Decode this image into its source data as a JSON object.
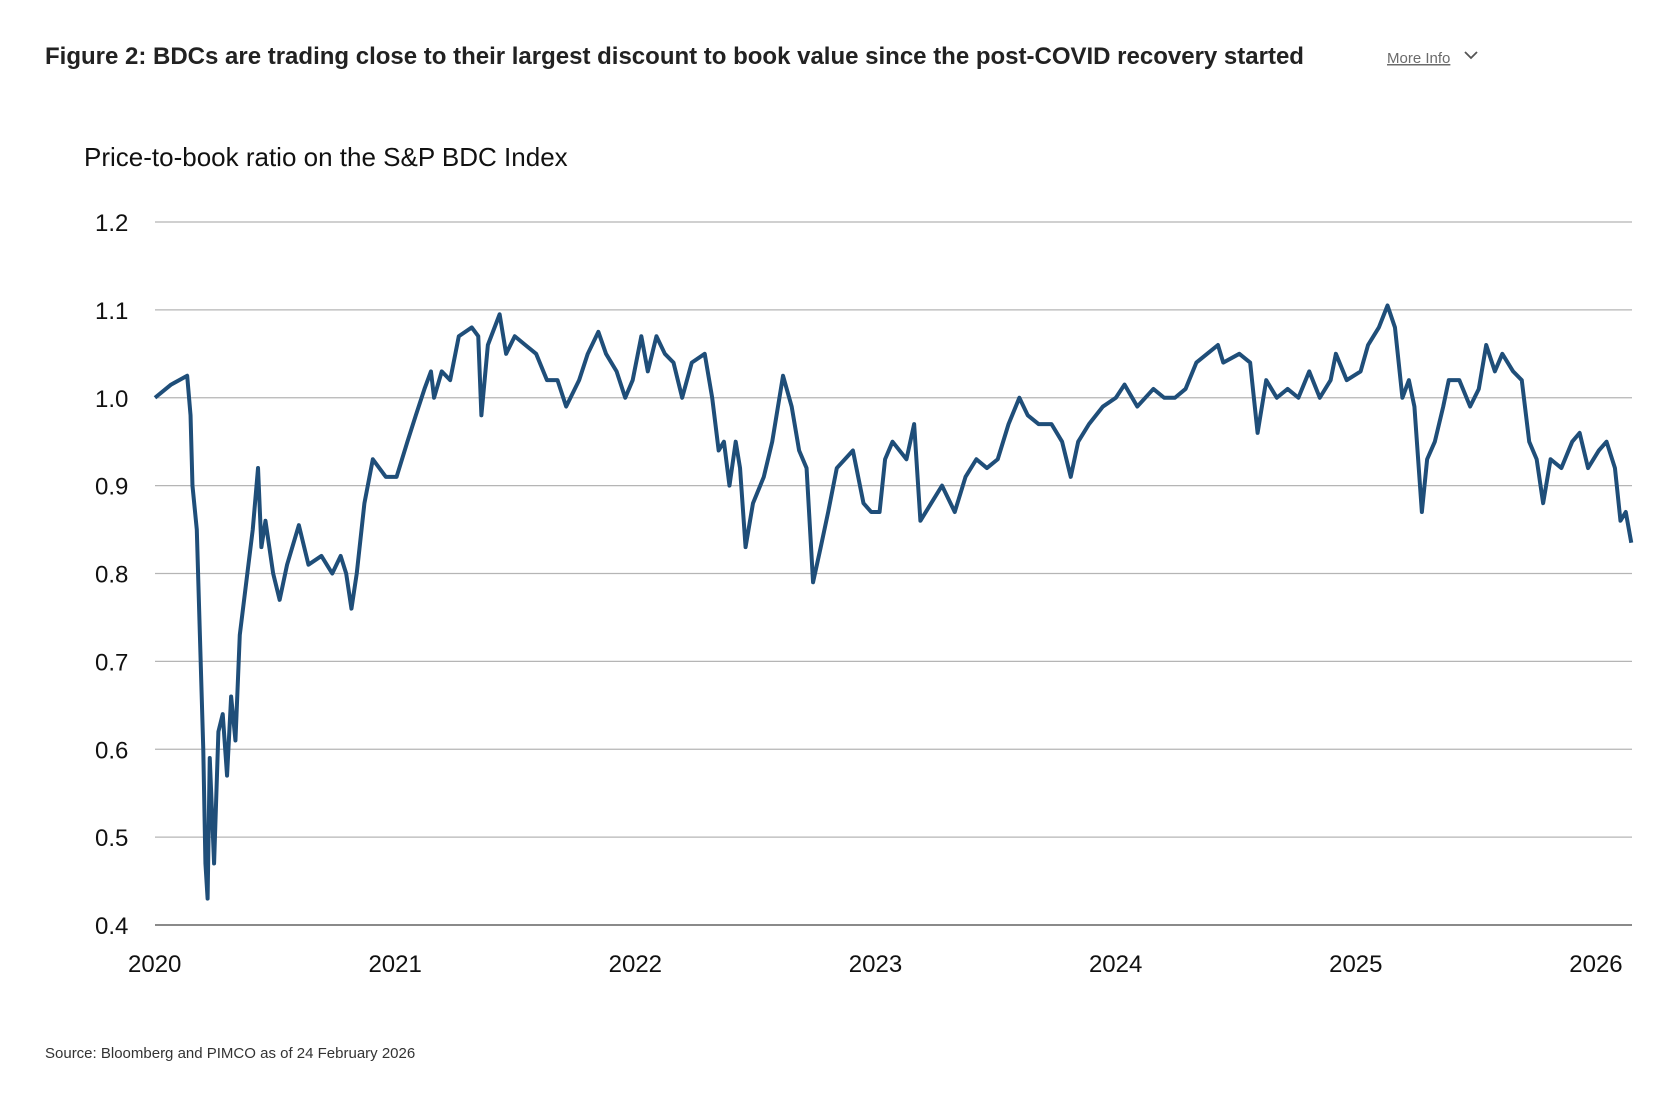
{
  "header": {
    "title": "Figure 2: BDCs are trading close to their largest discount to book value since the post-COVID recovery started",
    "more_info": "More Info"
  },
  "chart_data": {
    "type": "line",
    "title": "Price-to-book ratio on the S&P BDC Index",
    "xlim": [
      2020,
      2026.15
    ],
    "xticks": [
      2020,
      2021,
      2022,
      2023,
      2024,
      2025,
      2026
    ],
    "ylim": [
      0.4,
      1.2
    ],
    "yticks": [
      {
        "value": 0.4,
        "label": "0.4"
      },
      {
        "value": 0.5,
        "label": "0.5"
      },
      {
        "value": 0.6,
        "label": "0.6"
      },
      {
        "value": 0.7,
        "label": "0.7"
      },
      {
        "value": 0.8,
        "label": "0.8"
      },
      {
        "value": 0.9,
        "label": "0.9"
      },
      {
        "value": 1.0,
        "label": "1.0"
      },
      {
        "value": 1.1,
        "label": "1.1"
      },
      {
        "value": 1.2,
        "label": "1.2"
      }
    ],
    "grid": true,
    "series": [
      {
        "color": "#1f4e79",
        "x": [
          2020.0,
          2020.067,
          2020.134,
          2020.148,
          2020.156,
          2020.174,
          2020.188,
          2020.201,
          2020.21,
          2020.219,
          2020.228,
          2020.246,
          2020.264,
          2020.282,
          2020.3,
          2020.317,
          2020.335,
          2020.353,
          2020.38,
          2020.407,
          2020.429,
          2020.443,
          2020.46,
          2020.492,
          2020.519,
          2020.55,
          2020.599,
          2020.639,
          2020.693,
          2020.738,
          2020.773,
          2020.796,
          2020.818,
          2020.84,
          2020.872,
          2020.907,
          2020.961,
          2021.006,
          2021.051,
          2021.086,
          2021.122,
          2021.149,
          2021.162,
          2021.194,
          2021.229,
          2021.265,
          2021.319,
          2021.346,
          2021.359,
          2021.386,
          2021.435,
          2021.462,
          2021.498,
          2021.542,
          2021.587,
          2021.632,
          2021.676,
          2021.712,
          2021.766,
          2021.802,
          2021.846,
          2021.878,
          2021.922,
          2021.958,
          2021.989,
          2022.025,
          2022.052,
          2022.088,
          2022.123,
          2022.159,
          2022.195,
          2022.235,
          2022.289,
          2022.32,
          2022.347,
          2022.369,
          2022.392,
          2022.418,
          2022.436,
          2022.459,
          2022.49,
          2022.535,
          2022.57,
          2022.615,
          2022.651,
          2022.682,
          2022.713,
          2022.74,
          2022.772,
          2022.803,
          2022.839,
          2022.906,
          2022.95,
          2022.982,
          2023.017,
          2023.04,
          2023.071,
          2023.129,
          2023.161,
          2023.187,
          2023.232,
          2023.277,
          2023.33,
          2023.375,
          2023.42,
          2023.464,
          2023.509,
          2023.554,
          2023.599,
          2023.634,
          2023.679,
          2023.733,
          2023.777,
          2023.813,
          2023.844,
          2023.889,
          2023.947,
          2024.001,
          2024.037,
          2024.09,
          2024.157,
          2024.202,
          2024.247,
          2024.291,
          2024.336,
          2024.381,
          2024.426,
          2024.448,
          2024.515,
          2024.56,
          2024.591,
          2024.627,
          2024.671,
          2024.716,
          2024.761,
          2024.806,
          2024.85,
          2024.895,
          2024.917,
          2024.962,
          2025.02,
          2025.051,
          2025.096,
          2025.132,
          2025.163,
          2025.194,
          2025.221,
          2025.244,
          2025.275,
          2025.297,
          2025.329,
          2025.364,
          2025.387,
          2025.431,
          2025.476,
          2025.512,
          2025.543,
          2025.579,
          2025.61,
          2025.655,
          2025.691,
          2025.722,
          2025.753,
          2025.78,
          2025.811,
          2025.856,
          2025.901,
          2025.932,
          2025.967,
          2026.012,
          2026.044,
          2026.079,
          2026.102,
          2026.124,
          2026.147
        ],
        "values": [
          1.0,
          1.015,
          1.025,
          0.98,
          0.9,
          0.85,
          0.72,
          0.6,
          0.47,
          0.43,
          0.59,
          0.47,
          0.62,
          0.64,
          0.57,
          0.66,
          0.61,
          0.73,
          0.79,
          0.85,
          0.92,
          0.83,
          0.86,
          0.8,
          0.77,
          0.81,
          0.855,
          0.81,
          0.82,
          0.8,
          0.82,
          0.8,
          0.76,
          0.8,
          0.88,
          0.93,
          0.91,
          0.91,
          0.95,
          0.98,
          1.01,
          1.03,
          1.0,
          1.03,
          1.02,
          1.07,
          1.08,
          1.07,
          0.98,
          1.06,
          1.095,
          1.05,
          1.07,
          1.06,
          1.05,
          1.02,
          1.02,
          0.99,
          1.02,
          1.05,
          1.075,
          1.05,
          1.03,
          1.0,
          1.02,
          1.07,
          1.03,
          1.07,
          1.05,
          1.04,
          1.0,
          1.04,
          1.05,
          1.0,
          0.94,
          0.95,
          0.9,
          0.95,
          0.92,
          0.83,
          0.88,
          0.91,
          0.95,
          1.025,
          0.99,
          0.94,
          0.92,
          0.79,
          0.83,
          0.87,
          0.92,
          0.94,
          0.88,
          0.87,
          0.87,
          0.93,
          0.95,
          0.93,
          0.97,
          0.86,
          0.88,
          0.9,
          0.87,
          0.91,
          0.93,
          0.92,
          0.93,
          0.97,
          1.0,
          0.98,
          0.97,
          0.97,
          0.95,
          0.91,
          0.95,
          0.97,
          0.99,
          1.0,
          1.015,
          0.99,
          1.01,
          1.0,
          1.0,
          1.01,
          1.04,
          1.05,
          1.06,
          1.04,
          1.05,
          1.04,
          0.96,
          1.02,
          1.0,
          1.01,
          1.0,
          1.03,
          1.0,
          1.02,
          1.05,
          1.02,
          1.03,
          1.06,
          1.08,
          1.105,
          1.08,
          1.0,
          1.02,
          0.99,
          0.87,
          0.93,
          0.95,
          0.99,
          1.02,
          1.02,
          0.99,
          1.01,
          1.06,
          1.03,
          1.05,
          1.03,
          1.02,
          0.95,
          0.93,
          0.88,
          0.93,
          0.92,
          0.95,
          0.96,
          0.92,
          0.94,
          0.95,
          0.92,
          0.86,
          0.87,
          0.835
        ]
      }
    ]
  },
  "footer": {
    "source": "Source: Bloomberg and PIMCO as of 24 February 2026"
  }
}
